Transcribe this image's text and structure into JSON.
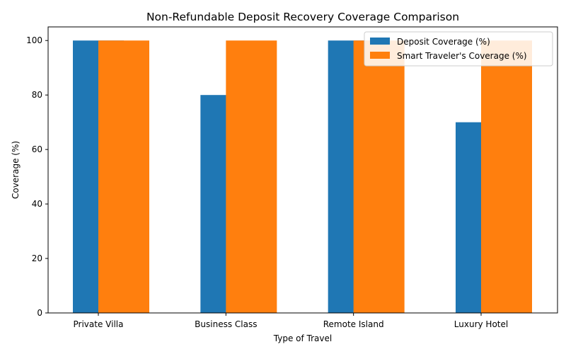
{
  "chart_data": {
    "type": "bar",
    "title": "Non-Refundable Deposit Recovery Coverage Comparison",
    "xlabel": "Type of Travel",
    "ylabel": "Coverage (%)",
    "categories": [
      "Private Villa",
      "Business Class",
      "Remote Island",
      "Luxury Hotel"
    ],
    "series": [
      {
        "name": "Deposit Coverage (%)",
        "values": [
          100,
          80,
          100,
          70
        ],
        "color": "#1f77b4"
      },
      {
        "name": "Smart Traveler's Coverage (%)",
        "values": [
          100,
          100,
          100,
          100
        ],
        "color": "#ff7f0e"
      }
    ],
    "ylim": [
      0,
      105
    ],
    "yticks": [
      0,
      20,
      40,
      60,
      80,
      100
    ],
    "grid": false,
    "legend": "top-right"
  }
}
